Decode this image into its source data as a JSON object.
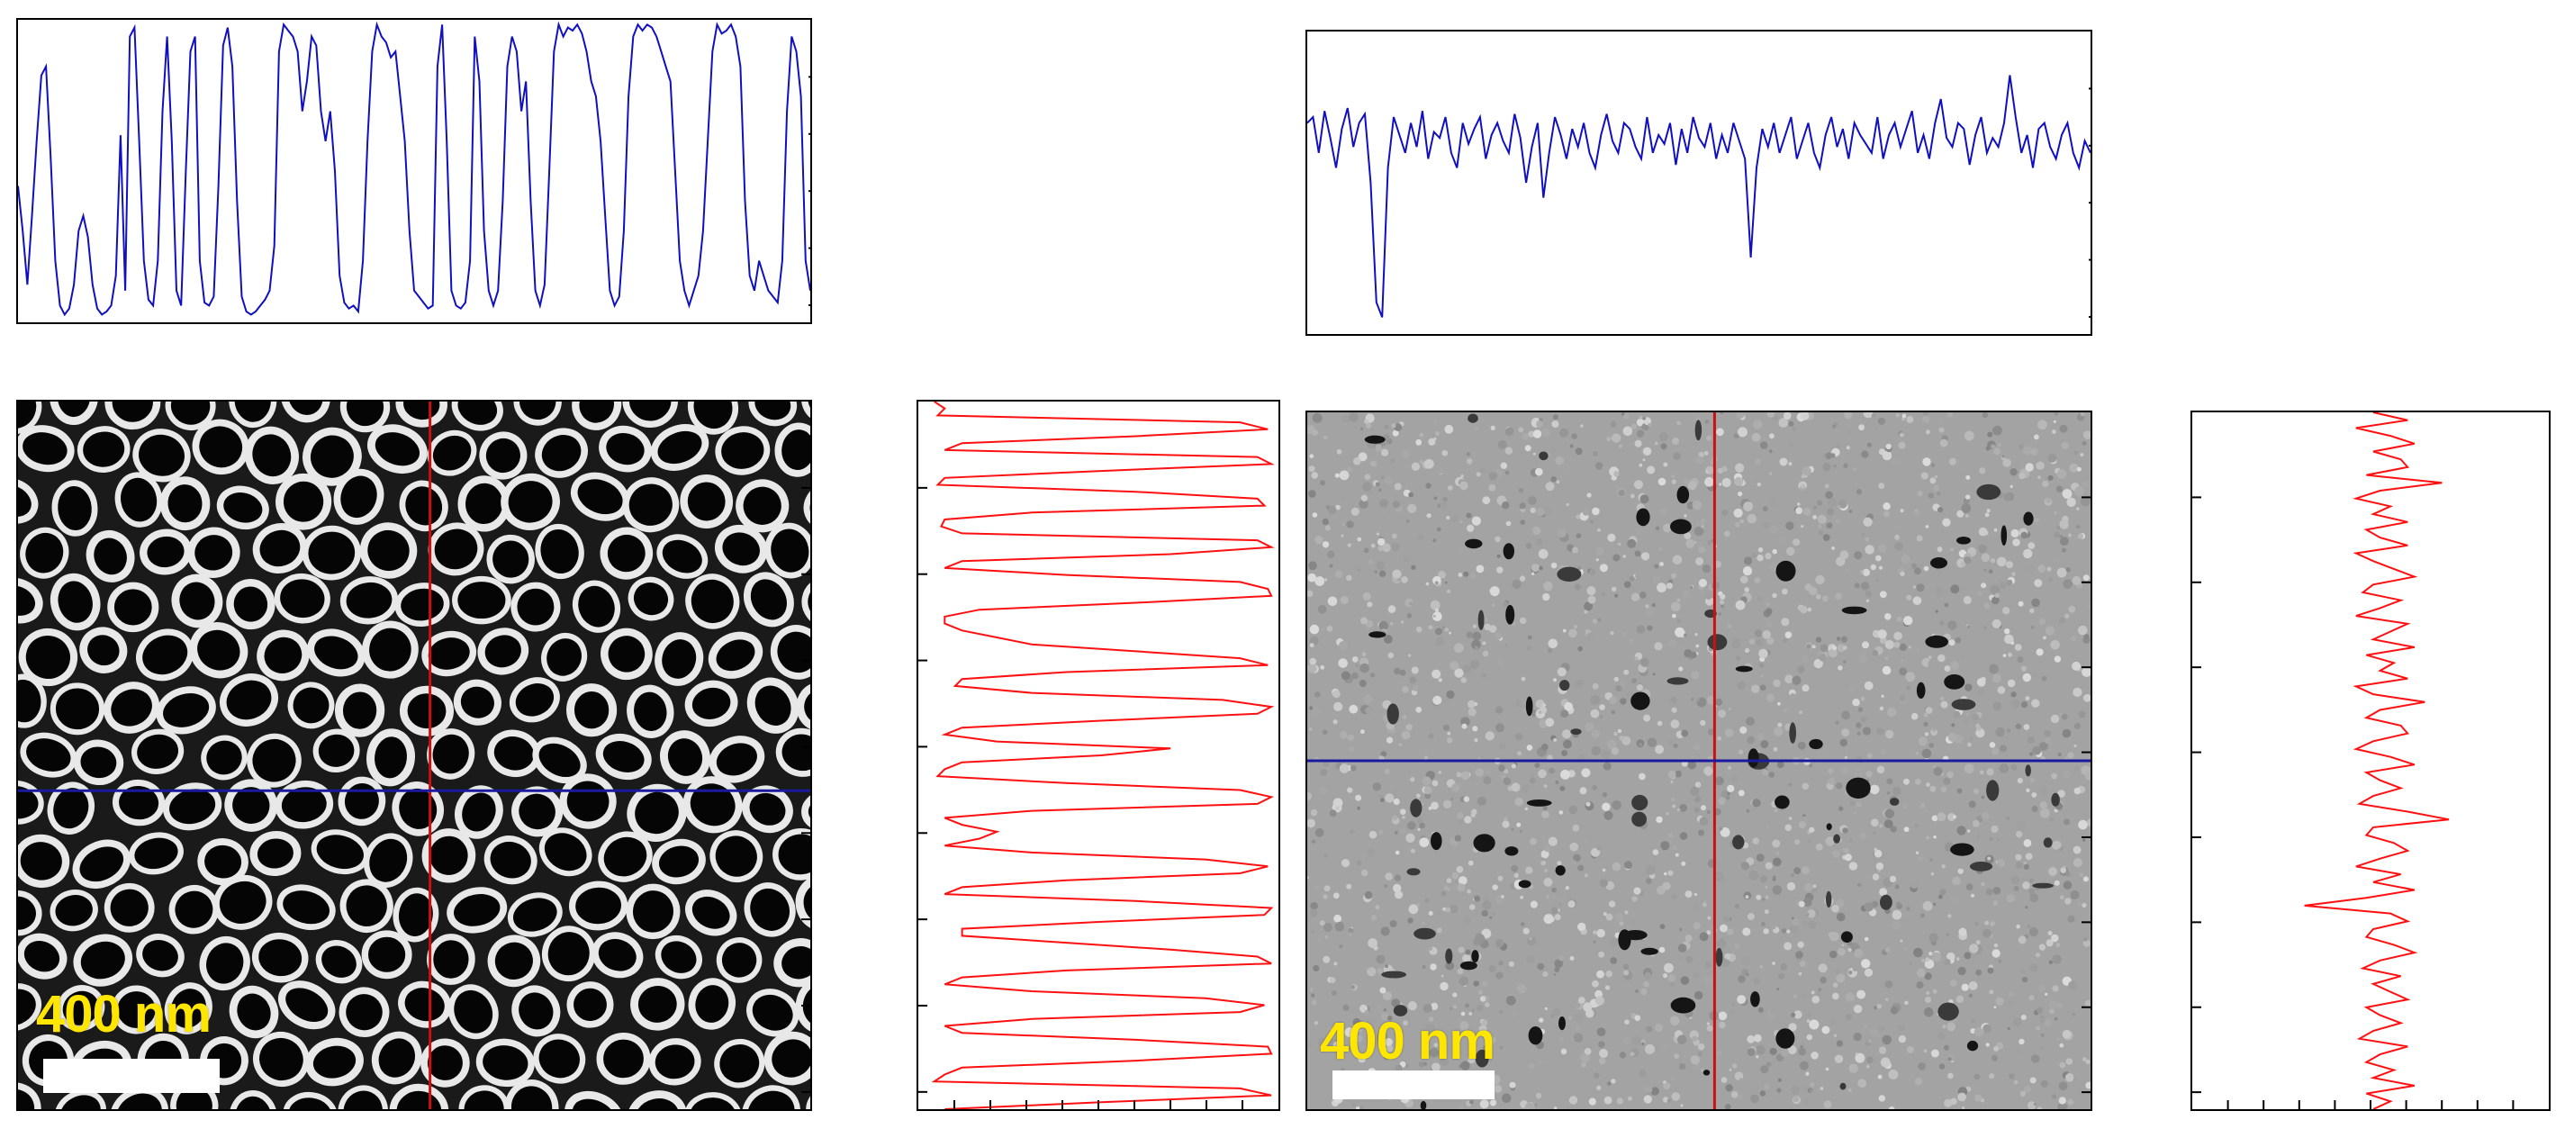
{
  "figure": {
    "left_panel": {
      "scale_label": "400 nm",
      "horizontal_profile_color": "#1010c0",
      "vertical_profile_color": "#ff1010",
      "crosshair_horizontal_color": "#1a1aa0",
      "crosshair_vertical_color": "#cc1010",
      "image_type": "SEM nanotube array (high contrast)"
    },
    "right_panel": {
      "scale_label": "400 nm",
      "horizontal_profile_color": "#1010c0",
      "vertical_profile_color": "#ff1010",
      "crosshair_horizontal_color": "#1a1aa0",
      "crosshair_vertical_color": "#cc1010",
      "image_type": "SEM porous film (low contrast)"
    }
  },
  "chart_data": [
    {
      "type": "line",
      "title": "",
      "xlabel": "",
      "ylabel": "",
      "orientation": "horizontal",
      "ylim": [
        0,
        1
      ],
      "values": [
        0.45,
        0.3,
        0.12,
        0.35,
        0.6,
        0.82,
        0.85,
        0.55,
        0.2,
        0.05,
        0.02,
        0.04,
        0.12,
        0.3,
        0.35,
        0.28,
        0.12,
        0.04,
        0.02,
        0.03,
        0.05,
        0.15,
        0.62,
        0.1,
        0.95,
        0.98,
        0.6,
        0.2,
        0.07,
        0.05,
        0.2,
        0.7,
        0.95,
        0.6,
        0.1,
        0.05,
        0.5,
        0.9,
        0.95,
        0.2,
        0.06,
        0.05,
        0.08,
        0.45,
        0.92,
        0.98,
        0.85,
        0.4,
        0.08,
        0.03,
        0.02,
        0.03,
        0.05,
        0.07,
        0.1,
        0.25,
        0.9,
        0.99,
        0.97,
        0.95,
        0.9,
        0.7,
        0.8,
        0.95,
        0.92,
        0.7,
        0.6,
        0.7,
        0.5,
        0.15,
        0.06,
        0.04,
        0.05,
        0.03,
        0.2,
        0.6,
        0.9,
        0.99,
        0.95,
        0.93,
        0.88,
        0.9,
        0.75,
        0.6,
        0.3,
        0.1,
        0.08,
        0.06,
        0.04,
        0.05,
        0.85,
        0.99,
        0.6,
        0.1,
        0.05,
        0.04,
        0.06,
        0.2,
        0.95,
        0.8,
        0.3,
        0.1,
        0.05,
        0.1,
        0.4,
        0.85,
        0.95,
        0.9,
        0.7,
        0.8,
        0.4,
        0.1,
        0.05,
        0.12,
        0.5,
        0.9,
        0.99,
        0.95,
        0.98,
        0.97,
        0.99,
        0.96,
        0.9,
        0.8,
        0.75,
        0.6,
        0.35,
        0.1,
        0.05,
        0.08,
        0.3,
        0.75,
        0.95,
        0.99,
        0.97,
        0.99,
        0.98,
        0.95,
        0.9,
        0.85,
        0.8,
        0.5,
        0.2,
        0.1,
        0.05,
        0.1,
        0.15,
        0.3,
        0.6,
        0.9,
        0.99,
        0.96,
        0.97,
        0.99,
        0.95,
        0.85,
        0.4,
        0.15,
        0.1,
        0.2,
        0.15,
        0.1,
        0.08,
        0.06,
        0.2,
        0.7,
        0.95,
        0.9,
        0.75,
        0.2,
        0.1
      ]
    },
    {
      "type": "line",
      "title": "",
      "xlabel": "",
      "ylabel": "",
      "orientation": "vertical",
      "xlim": [
        0,
        1
      ],
      "values": [
        0.02,
        0.05,
        0.03,
        0.9,
        0.98,
        0.6,
        0.1,
        0.05,
        0.95,
        0.99,
        0.5,
        0.05,
        0.03,
        0.6,
        0.95,
        0.97,
        0.3,
        0.05,
        0.04,
        0.1,
        0.95,
        0.99,
        0.7,
        0.1,
        0.05,
        0.4,
        0.9,
        0.98,
        0.99,
        0.6,
        0.15,
        0.05,
        0.05,
        0.1,
        0.2,
        0.3,
        0.6,
        0.9,
        0.98,
        0.4,
        0.1,
        0.08,
        0.3,
        0.85,
        0.99,
        0.95,
        0.5,
        0.1,
        0.05,
        0.2,
        0.7,
        0.5,
        0.1,
        0.05,
        0.03,
        0.4,
        0.9,
        0.99,
        0.95,
        0.3,
        0.05,
        0.1,
        0.2,
        0.15,
        0.05,
        0.3,
        0.8,
        0.98,
        0.9,
        0.4,
        0.1,
        0.05,
        0.6,
        0.99,
        0.97,
        0.5,
        0.1,
        0.1,
        0.4,
        0.7,
        0.95,
        0.99,
        0.4,
        0.1,
        0.05,
        0.3,
        0.8,
        0.97,
        0.9,
        0.3,
        0.05,
        0.1,
        0.6,
        0.98,
        0.99,
        0.6,
        0.1,
        0.05,
        0.02,
        0.9,
        0.99,
        0.5,
        0.05
      ]
    },
    {
      "type": "line",
      "title": "",
      "xlabel": "",
      "ylabel": "",
      "orientation": "horizontal",
      "ylim": [
        0,
        1
      ],
      "values": [
        0.7,
        0.72,
        0.6,
        0.74,
        0.65,
        0.55,
        0.68,
        0.75,
        0.62,
        0.7,
        0.73,
        0.5,
        0.1,
        0.05,
        0.55,
        0.72,
        0.66,
        0.6,
        0.7,
        0.62,
        0.74,
        0.58,
        0.67,
        0.65,
        0.72,
        0.6,
        0.55,
        0.7,
        0.63,
        0.68,
        0.72,
        0.58,
        0.66,
        0.7,
        0.64,
        0.6,
        0.73,
        0.65,
        0.5,
        0.62,
        0.7,
        0.45,
        0.6,
        0.72,
        0.66,
        0.58,
        0.68,
        0.62,
        0.7,
        0.6,
        0.55,
        0.66,
        0.73,
        0.64,
        0.6,
        0.7,
        0.68,
        0.62,
        0.58,
        0.72,
        0.6,
        0.66,
        0.63,
        0.7,
        0.56,
        0.68,
        0.6,
        0.72,
        0.65,
        0.62,
        0.7,
        0.58,
        0.66,
        0.6,
        0.7,
        0.64,
        0.58,
        0.25,
        0.55,
        0.68,
        0.62,
        0.7,
        0.6,
        0.66,
        0.72,
        0.58,
        0.64,
        0.7,
        0.6,
        0.55,
        0.66,
        0.72,
        0.62,
        0.68,
        0.58,
        0.7,
        0.66,
        0.63,
        0.6,
        0.72,
        0.58,
        0.66,
        0.7,
        0.62,
        0.68,
        0.74,
        0.6,
        0.66,
        0.58,
        0.7,
        0.78,
        0.65,
        0.62,
        0.7,
        0.68,
        0.56,
        0.66,
        0.72,
        0.6,
        0.65,
        0.62,
        0.7,
        0.86,
        0.72,
        0.6,
        0.66,
        0.55,
        0.68,
        0.7,
        0.62,
        0.58,
        0.66,
        0.7,
        0.6,
        0.55,
        0.64,
        0.6
      ]
    },
    {
      "type": "line",
      "title": "",
      "xlabel": "",
      "ylabel": "",
      "orientation": "vertical",
      "xlim": [
        0,
        1
      ],
      "values": [
        0.5,
        0.6,
        0.45,
        0.55,
        0.62,
        0.5,
        0.58,
        0.6,
        0.48,
        0.7,
        0.52,
        0.45,
        0.55,
        0.5,
        0.6,
        0.48,
        0.52,
        0.6,
        0.45,
        0.5,
        0.56,
        0.62,
        0.5,
        0.47,
        0.58,
        0.52,
        0.45,
        0.6,
        0.55,
        0.5,
        0.62,
        0.48,
        0.56,
        0.52,
        0.6,
        0.45,
        0.5,
        0.65,
        0.52,
        0.48,
        0.58,
        0.6,
        0.5,
        0.45,
        0.55,
        0.62,
        0.48,
        0.52,
        0.58,
        0.5,
        0.46,
        0.6,
        0.72,
        0.5,
        0.48,
        0.56,
        0.6,
        0.52,
        0.45,
        0.58,
        0.5,
        0.62,
        0.48,
        0.3,
        0.55,
        0.6,
        0.5,
        0.48,
        0.56,
        0.62,
        0.52,
        0.47,
        0.58,
        0.5,
        0.55,
        0.6,
        0.48,
        0.52,
        0.58,
        0.5,
        0.46,
        0.6,
        0.52,
        0.48,
        0.56,
        0.5,
        0.62,
        0.48,
        0.55,
        0.5
      ]
    }
  ]
}
